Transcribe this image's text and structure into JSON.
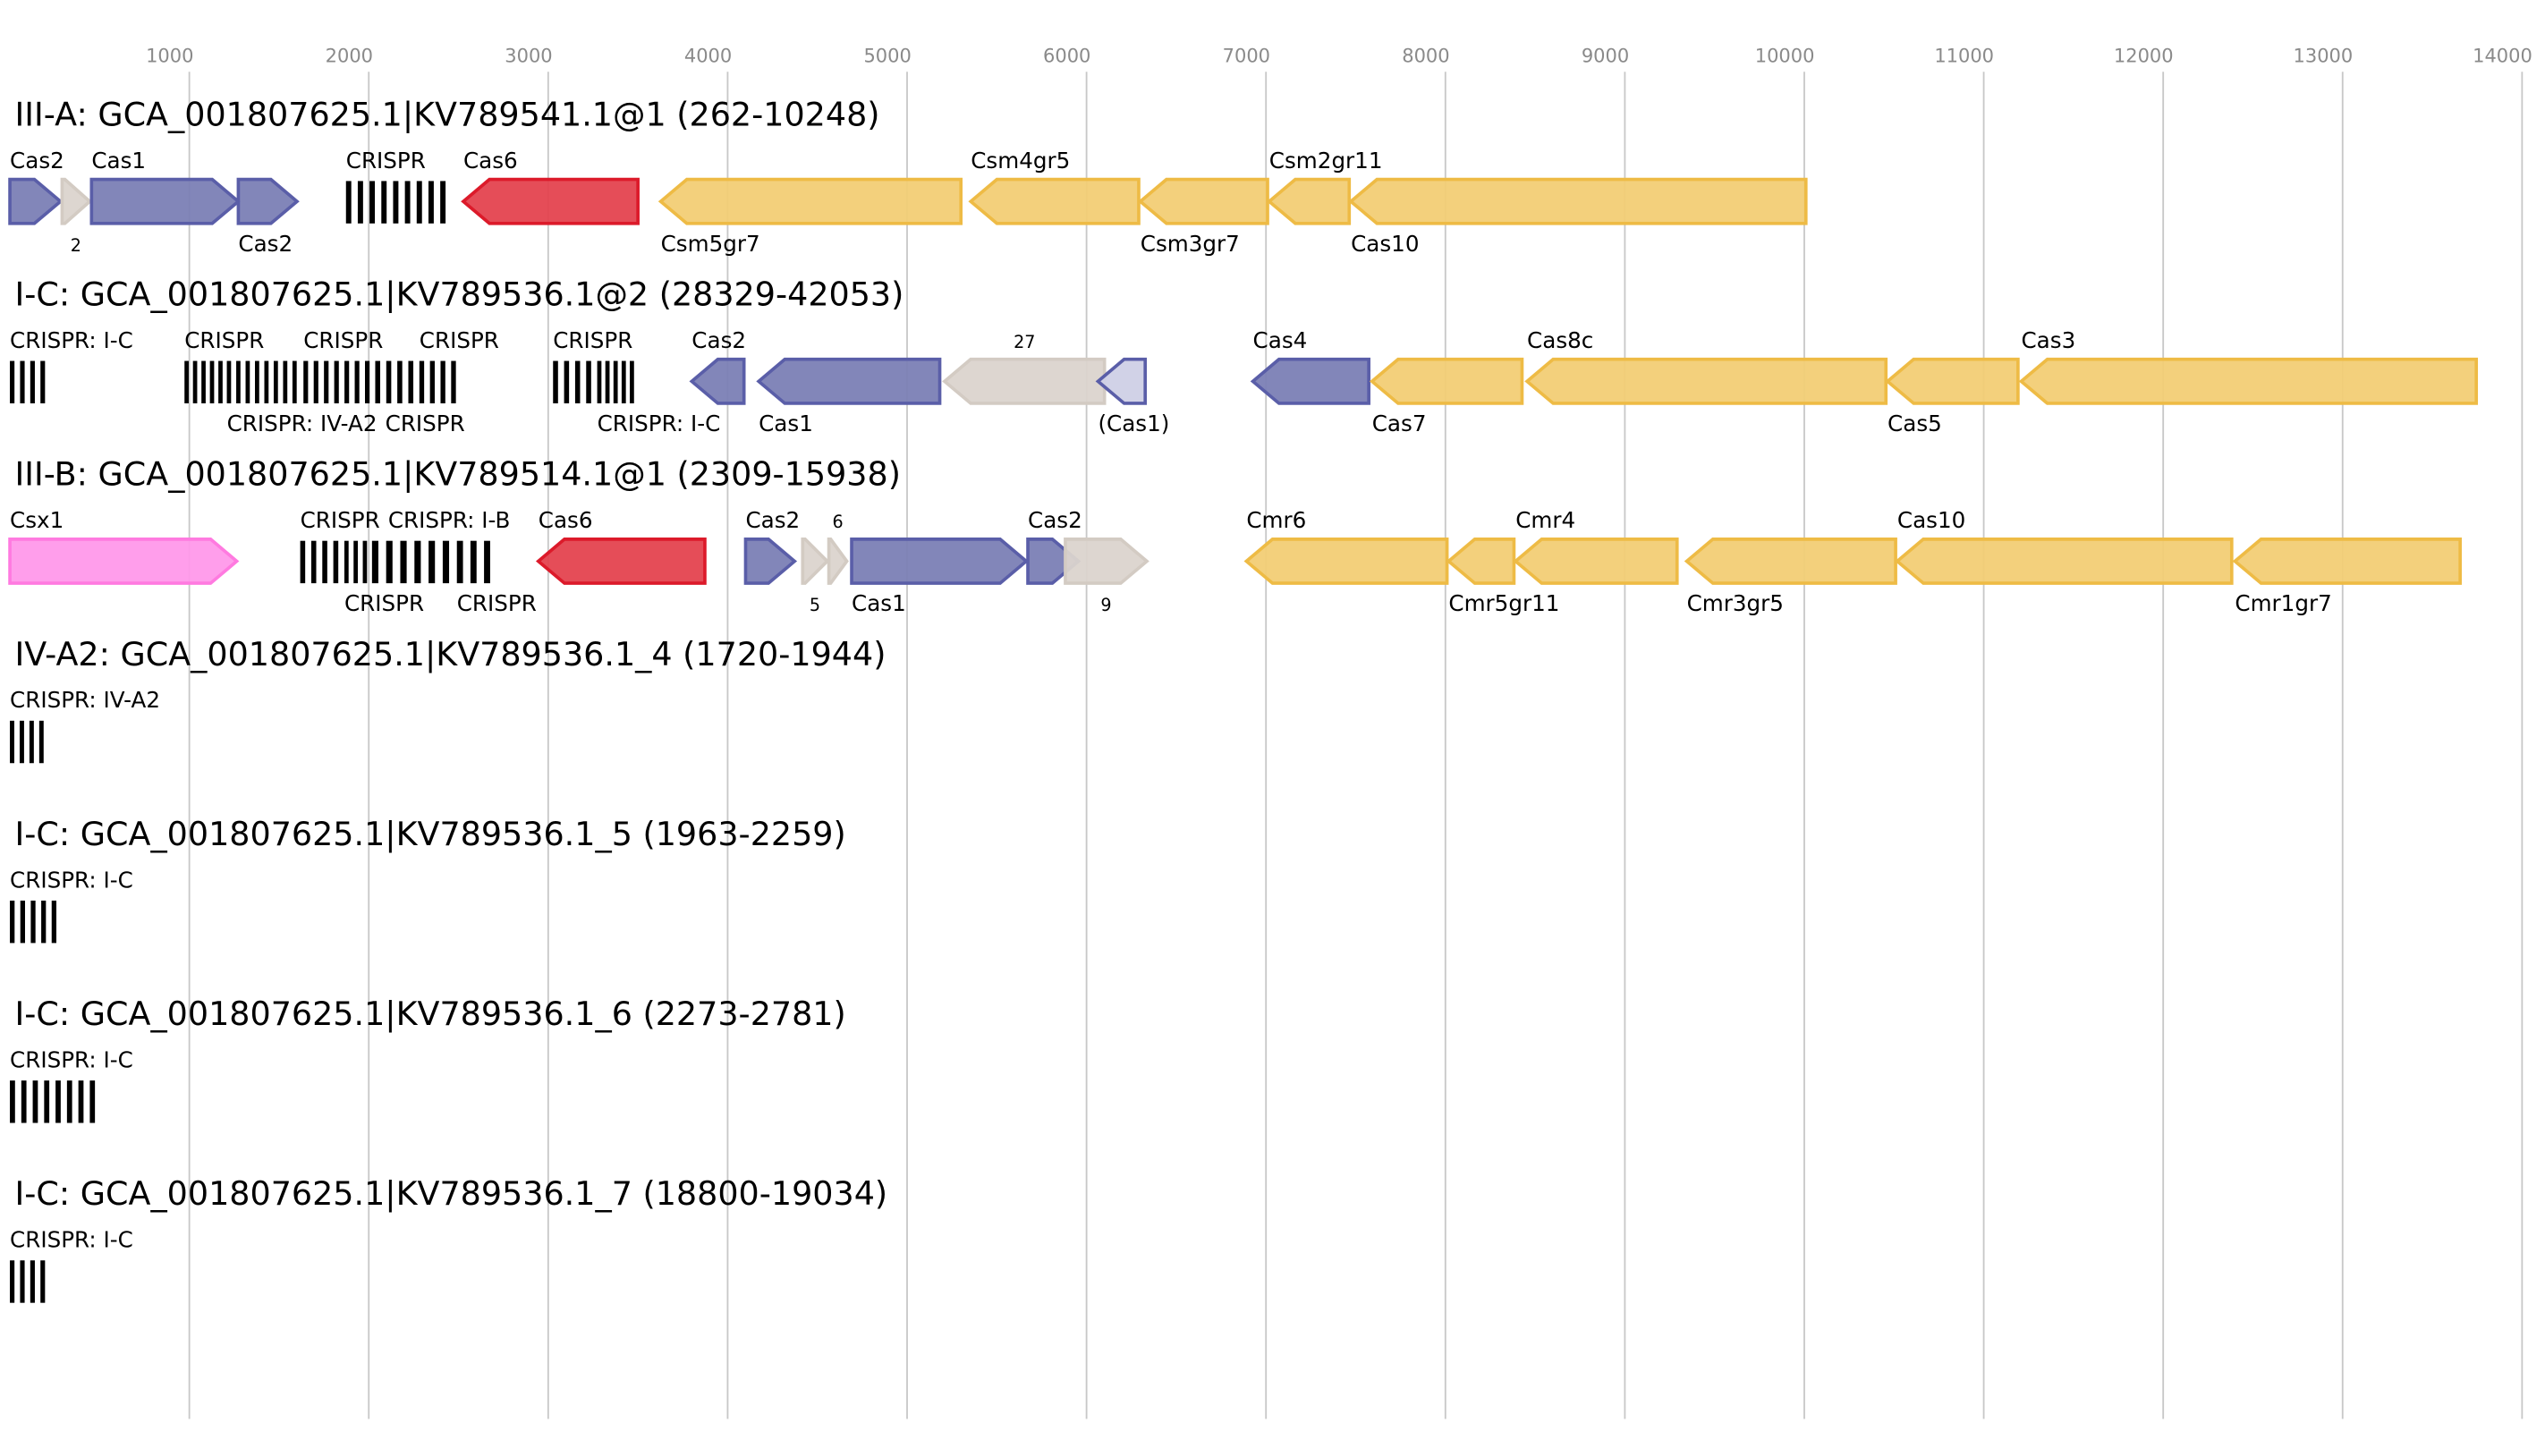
{
  "axis": {
    "ticks": [
      1000,
      2000,
      3000,
      4000,
      5000,
      6000,
      7000,
      8000,
      9000,
      10000,
      11000,
      12000,
      13000,
      14000
    ],
    "max": 14000
  },
  "colors": {
    "blue": [
      "#7b7fb5",
      "#5a5ea8"
    ],
    "gray": [
      "#dbd4ce",
      "#d3cbc3"
    ],
    "yellow": [
      "#f2ce75",
      "#eebb45"
    ],
    "red": [
      "#e4434f",
      "#dc1a2a"
    ],
    "pink": [
      "#ff99ea",
      "#ff7ae0"
    ],
    "lavender": [
      "#cfd0e6",
      "#5a5ea8"
    ],
    "crispr": [
      "#000000",
      "#000000"
    ]
  },
  "tracks": [
    {
      "title": "III-A: GCA_001807625.1|KV789541.1@1 (262-10248)",
      "genes": [
        {
          "label": "Cas2",
          "start": 0,
          "end": 282,
          "dir": 1,
          "color": "blue",
          "pos": "above"
        },
        {
          "label": "2",
          "start": 291,
          "end": 445,
          "dir": 1,
          "color": "gray",
          "pos": "below",
          "small": true
        },
        {
          "label": "Cas1",
          "start": 455,
          "end": 1273,
          "dir": 1,
          "color": "blue",
          "pos": "above"
        },
        {
          "label": "Cas2",
          "start": 1273,
          "end": 1600,
          "dir": 1,
          "color": "blue",
          "pos": "below"
        },
        {
          "label": "CRISPR",
          "start": 1873,
          "end": 2464,
          "crispr": 9,
          "pos": "above"
        },
        {
          "label": "Cas6",
          "start": 2527,
          "end": 3500,
          "dir": -1,
          "color": "red",
          "pos": "above"
        },
        {
          "label": "Csm5gr7",
          "start": 3627,
          "end": 5300,
          "dir": -1,
          "color": "yellow",
          "pos": "below"
        },
        {
          "label": "Csm4gr5",
          "start": 5355,
          "end": 6291,
          "dir": -1,
          "color": "yellow",
          "pos": "above"
        },
        {
          "label": "Csm3gr7",
          "start": 6300,
          "end": 7009,
          "dir": -1,
          "color": "yellow",
          "pos": "below"
        },
        {
          "label": "Csm2gr11",
          "start": 7018,
          "end": 7464,
          "dir": -1,
          "color": "yellow",
          "pos": "above"
        },
        {
          "label": "Cas10",
          "start": 7473,
          "end": 10009,
          "dir": -1,
          "color": "yellow",
          "pos": "below"
        }
      ]
    },
    {
      "title": "I-C: GCA_001807625.1|KV789536.1@2 (28329-42053)",
      "genes": [
        {
          "label": "CRISPR: I-C",
          "start": 0,
          "end": 227,
          "crispr": 4,
          "pos": "above"
        },
        {
          "label": "CRISPR",
          "start": 973,
          "end": 1209,
          "crispr": 5,
          "pos": "above"
        },
        {
          "label": "CRISPR: IV-A2",
          "start": 1209,
          "end": 1627,
          "crispr": 8,
          "pos": "above"
        },
        {
          "label": "CRISPR",
          "start": 1636,
          "end": 2036,
          "crispr": 7,
          "pos": "above"
        },
        {
          "label": "CRISPR",
          "start": 2036,
          "end": 2282,
          "crispr": 4,
          "pos": "above"
        },
        {
          "label": "CRISPR",
          "start": 2282,
          "end": 2518,
          "crispr": 4,
          "pos": "above"
        },
        {
          "label": "CRISPR",
          "start": 3027,
          "end": 3273,
          "crispr": 4,
          "pos": "above"
        },
        {
          "label": "CRISPR: I-C",
          "start": 3273,
          "end": 3500,
          "crispr": 5,
          "pos": "above"
        },
        {
          "label": "Cas2",
          "start": 3800,
          "end": 4091,
          "dir": -1,
          "color": "blue",
          "pos": "above"
        },
        {
          "label": "Cas1",
          "start": 4173,
          "end": 5182,
          "dir": -1,
          "color": "blue",
          "pos": "below"
        },
        {
          "label": "27",
          "start": 5209,
          "end": 6100,
          "dir": -1,
          "color": "gray",
          "pos": "above",
          "small": true
        },
        {
          "label": "(Cas1)",
          "start": 6064,
          "end": 6327,
          "dir": -1,
          "color": "lavender",
          "pos": "below"
        },
        {
          "label": "Cas4",
          "start": 6927,
          "end": 7573,
          "dir": -1,
          "color": "blue",
          "pos": "above"
        },
        {
          "label": "Cas7",
          "start": 7591,
          "end": 8427,
          "dir": -1,
          "color": "yellow",
          "pos": "below"
        },
        {
          "label": "Cas8c",
          "start": 8455,
          "end": 10455,
          "dir": -1,
          "color": "yellow",
          "pos": "above"
        },
        {
          "label": "Cas5",
          "start": 10464,
          "end": 11191,
          "dir": -1,
          "color": "yellow",
          "pos": "below"
        },
        {
          "label": "Cas3",
          "start": 11209,
          "end": 13745,
          "dir": -1,
          "color": "yellow",
          "pos": "above"
        }
      ]
    },
    {
      "title": "III-B: GCA_001807625.1|KV789514.1@1 (2309-15938)",
      "genes": [
        {
          "label": "Csx1",
          "start": 0,
          "end": 1264,
          "dir": 1,
          "color": "pink",
          "pos": "above"
        },
        {
          "label": "CRISPR",
          "start": 1618,
          "end": 1864,
          "crispr": 4,
          "pos": "above"
        },
        {
          "label": "CRISPR",
          "start": 1864,
          "end": 2018,
          "crispr": 3,
          "pos": "above"
        },
        {
          "label": "CRISPR: I-B",
          "start": 2018,
          "end": 2491,
          "crispr": 6,
          "pos": "above"
        },
        {
          "label": "CRISPR",
          "start": 2491,
          "end": 2718,
          "crispr": 3,
          "pos": "above"
        },
        {
          "label": "Cas6",
          "start": 2945,
          "end": 3873,
          "dir": -1,
          "color": "red",
          "pos": "below"
        },
        {
          "label": "Cas2",
          "start": 4100,
          "end": 4373,
          "dir": 1,
          "color": "blue",
          "pos": "above"
        },
        {
          "label": "5",
          "start": 4418,
          "end": 4555,
          "dir": 1,
          "color": "gray",
          "pos": "below",
          "small": true
        },
        {
          "label": "6",
          "start": 4564,
          "end": 4664,
          "dir": 1,
          "color": "gray",
          "pos": "above",
          "small": true
        },
        {
          "label": "Cas1",
          "start": 4691,
          "end": 5664,
          "dir": 1,
          "color": "blue",
          "pos": "below"
        },
        {
          "label": "Cas2",
          "start": 5673,
          "end": 5955,
          "dir": 1,
          "color": "blue",
          "pos": "above"
        },
        {
          "label": "9",
          "start": 5882,
          "end": 6336,
          "dir": 1,
          "color": "gray",
          "pos": "below",
          "small": true
        },
        {
          "label": "Cmr6",
          "start": 6891,
          "end": 8009,
          "dir": -1,
          "color": "yellow",
          "pos": "above"
        },
        {
          "label": "Cmr5gr11",
          "start": 8018,
          "end": 8382,
          "dir": -1,
          "color": "yellow",
          "pos": "below"
        },
        {
          "label": "Cmr4",
          "start": 8391,
          "end": 9291,
          "dir": -1,
          "color": "yellow",
          "pos": "above"
        },
        {
          "label": "Cmr3gr5",
          "start": 9345,
          "end": 10509,
          "dir": -1,
          "color": "yellow",
          "pos": "below"
        },
        {
          "label": "Cas10",
          "start": 10518,
          "end": 12382,
          "dir": -1,
          "color": "yellow",
          "pos": "above"
        },
        {
          "label": "Cmr1gr7",
          "start": 12400,
          "end": 13655,
          "dir": -1,
          "color": "yellow",
          "pos": "below"
        }
      ]
    },
    {
      "title": "IV-A2: GCA_001807625.1|KV789536.1_4 (1720-1944)",
      "genes": [
        {
          "label": "CRISPR: IV-A2",
          "start": 0,
          "end": 218,
          "crispr": 4,
          "pos": "above"
        }
      ]
    },
    {
      "title": "I-C: GCA_001807625.1|KV789536.1_5 (1963-2259)",
      "genes": [
        {
          "label": "CRISPR: I-C",
          "start": 0,
          "end": 291,
          "crispr": 5,
          "pos": "above"
        }
      ]
    },
    {
      "title": "I-C: GCA_001807625.1|KV789536.1_6 (2273-2781)",
      "genes": [
        {
          "label": "CRISPR: I-C",
          "start": 0,
          "end": 509,
          "crispr": 8,
          "pos": "above"
        }
      ]
    },
    {
      "title": "I-C: GCA_001807625.1|KV789536.1_7 (18800-19034)",
      "genes": [
        {
          "label": "CRISPR: I-C",
          "start": 0,
          "end": 227,
          "crispr": 4,
          "pos": "above"
        }
      ]
    }
  ]
}
